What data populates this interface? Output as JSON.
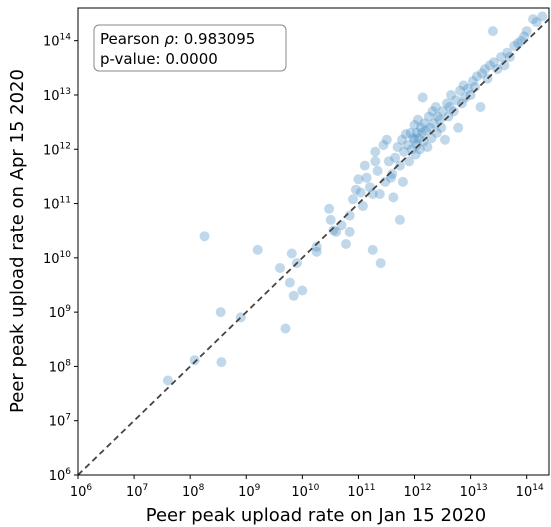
{
  "chart_data": {
    "type": "scatter",
    "title": "",
    "xlabel": "Peer peak upload rate on Jan 15 2020",
    "ylabel": "Peer peak upload rate on Apr 15 2020",
    "xscale": "log",
    "yscale": "log",
    "xlim": [
      1000000,
      250000000000000
    ],
    "ylim": [
      1000000,
      400000000000000
    ],
    "xticks": [
      {
        "value": 1000000.0,
        "base": "10",
        "exp": "6"
      },
      {
        "value": 10000000.0,
        "base": "10",
        "exp": "7"
      },
      {
        "value": 100000000.0,
        "base": "10",
        "exp": "8"
      },
      {
        "value": 1000000000.0,
        "base": "10",
        "exp": "9"
      },
      {
        "value": 10000000000.0,
        "base": "10",
        "exp": "10"
      },
      {
        "value": 100000000000.0,
        "base": "10",
        "exp": "11"
      },
      {
        "value": 1000000000000.0,
        "base": "10",
        "exp": "12"
      },
      {
        "value": 10000000000000.0,
        "base": "10",
        "exp": "13"
      },
      {
        "value": 100000000000000.0,
        "base": "10",
        "exp": "14"
      }
    ],
    "yticks": [
      {
        "value": 1000000.0,
        "base": "10",
        "exp": "6"
      },
      {
        "value": 10000000.0,
        "base": "10",
        "exp": "7"
      },
      {
        "value": 100000000.0,
        "base": "10",
        "exp": "8"
      },
      {
        "value": 1000000000.0,
        "base": "10",
        "exp": "9"
      },
      {
        "value": 10000000000.0,
        "base": "10",
        "exp": "10"
      },
      {
        "value": 100000000000.0,
        "base": "10",
        "exp": "11"
      },
      {
        "value": 1000000000000.0,
        "base": "10",
        "exp": "12"
      },
      {
        "value": 10000000000000.0,
        "base": "10",
        "exp": "13"
      },
      {
        "value": 100000000000000.0,
        "base": "10",
        "exp": "14"
      }
    ],
    "grid": false,
    "reference_line": {
      "style": "dashed",
      "color": "#444444",
      "relation": "y = x"
    },
    "annotation": {
      "line1_prefix": "Pearson ",
      "line1_symbol": "ρ",
      "line1_suffix": ": 0.983095",
      "line2": "p-value: 0.0000",
      "placement": "top-left"
    },
    "point_color": "#4a90c2",
    "point_opacity": 0.35,
    "points": [
      [
        40000000.0,
        55000000.0
      ],
      [
        120000000.0,
        130000000.0
      ],
      [
        180000000.0,
        25000000000.0
      ],
      [
        350000000.0,
        1000000000.0
      ],
      [
        360000000.0,
        120000000.0
      ],
      [
        800000000.0,
        800000000.0
      ],
      [
        1600000000.0,
        14000000000.0
      ],
      [
        4000000000.0,
        6500000000.0
      ],
      [
        5000000000.0,
        500000000.0
      ],
      [
        6000000000.0,
        3500000000.0
      ],
      [
        6500000000.0,
        12000000000.0
      ],
      [
        7000000000.0,
        2000000000.0
      ],
      [
        8000000000.0,
        8000000000.0
      ],
      [
        10000000000.0,
        2500000000.0
      ],
      [
        18000000000.0,
        13000000000.0
      ],
      [
        18000000000.0,
        16000000000.0
      ],
      [
        30000000000.0,
        80000000000.0
      ],
      [
        32000000000.0,
        50000000000.0
      ],
      [
        36000000000.0,
        32000000000.0
      ],
      [
        40000000000.0,
        30000000000.0
      ],
      [
        50000000000.0,
        40000000000.0
      ],
      [
        60000000000.0,
        18000000000.0
      ],
      [
        70000000000.0,
        60000000000.0
      ],
      [
        70000000000.0,
        30000000000.0
      ],
      [
        80000000000.0,
        120000000000.0
      ],
      [
        90000000000.0,
        180000000000.0
      ],
      [
        100000000000.0,
        280000000000.0
      ],
      [
        110000000000.0,
        160000000000.0
      ],
      [
        120000000000.0,
        90000000000.0
      ],
      [
        130000000000.0,
        500000000000.0
      ],
      [
        140000000000.0,
        300000000000.0
      ],
      [
        160000000000.0,
        200000000000.0
      ],
      [
        180000000000.0,
        150000000000.0
      ],
      [
        180000000000.0,
        14000000000.0
      ],
      [
        200000000000.0,
        600000000000.0
      ],
      [
        200000000000.0,
        900000000000.0
      ],
      [
        220000000000.0,
        400000000000.0
      ],
      [
        240000000000.0,
        150000000000.0
      ],
      [
        250000000000.0,
        8000000000.0
      ],
      [
        280000000000.0,
        1200000000000.0
      ],
      [
        300000000000.0,
        250000000000.0
      ],
      [
        320000000000.0,
        1500000000000.0
      ],
      [
        350000000000.0,
        600000000000.0
      ],
      [
        380000000000.0,
        300000000000.0
      ],
      [
        400000000000.0,
        350000000000.0
      ],
      [
        420000000000.0,
        130000000000.0
      ],
      [
        450000000000.0,
        700000000000.0
      ],
      [
        500000000000.0,
        1100000000000.0
      ],
      [
        550000000000.0,
        50000000000.0
      ],
      [
        550000000000.0,
        500000000000.0
      ],
      [
        600000000000.0,
        1500000000000.0
      ],
      [
        620000000000.0,
        250000000000.0
      ],
      [
        650000000000.0,
        900000000000.0
      ],
      [
        700000000000.0,
        1900000000000.0
      ],
      [
        750000000000.0,
        1200000000000.0
      ],
      [
        800000000000.0,
        600000000000.0
      ],
      [
        850000000000.0,
        2000000000000.0
      ],
      [
        900000000000.0,
        1000000000000.0
      ],
      [
        950000000000.0,
        1600000000000.0
      ],
      [
        1000000000000.0,
        2800000000000.0
      ],
      [
        1000000000000.0,
        1500000000000.0
      ],
      [
        1050000000000.0,
        800000000000.0
      ],
      [
        1100000000000.0,
        2000000000000.0
      ],
      [
        1100000000000.0,
        1200000000000.0
      ],
      [
        1150000000000.0,
        3500000000000.0
      ],
      [
        1200000000000.0,
        1600000000000.0
      ],
      [
        1250000000000.0,
        1000000000000.0
      ],
      [
        1300000000000.0,
        2500000000000.0
      ],
      [
        1350000000000.0,
        2000000000000.0
      ],
      [
        1400000000000.0,
        9000000000000.0
      ],
      [
        1450000000000.0,
        1400000000000.0
      ],
      [
        1500000000000.0,
        3000000000000.0
      ],
      [
        1600000000000.0,
        2200000000000.0
      ],
      [
        1700000000000.0,
        1100000000000.0
      ],
      [
        1800000000000.0,
        4000000000000.0
      ],
      [
        1900000000000.0,
        2500000000000.0
      ],
      [
        2000000000000.0,
        1600000000000.0
      ],
      [
        2100000000000.0,
        5000000000000.0
      ],
      [
        2200000000000.0,
        3000000000000.0
      ],
      [
        2400000000000.0,
        6000000000000.0
      ],
      [
        2500000000000.0,
        2000000000000.0
      ],
      [
        2600000000000.0,
        4000000000000.0
      ],
      [
        2800000000000.0,
        3500000000000.0
      ],
      [
        3000000000000.0,
        2500000000000.0
      ],
      [
        3200000000000.0,
        5000000000000.0
      ],
      [
        3500000000000.0,
        1500000000000.0
      ],
      [
        3800000000000.0,
        7000000000000.0
      ],
      [
        4000000000000.0,
        4000000000000.0
      ],
      [
        4200000000000.0,
        6000000000000.0
      ],
      [
        4500000000000.0,
        10000000000000.0
      ],
      [
        5000000000000.0,
        5000000000000.0
      ],
      [
        5500000000000.0,
        8000000000000.0
      ],
      [
        6000000000000.0,
        2500000000000.0
      ],
      [
        6500000000000.0,
        12000000000000.0
      ],
      [
        7000000000000.0,
        7000000000000.0
      ],
      [
        7500000000000.0,
        15000000000000.0
      ],
      [
        8000000000000.0,
        9000000000000.0
      ],
      [
        9000000000000.0,
        13000000000000.0
      ],
      [
        10000000000000.0,
        10000000000000.0
      ],
      [
        11000000000000.0,
        18000000000000.0
      ],
      [
        12000000000000.0,
        14000000000000.0
      ],
      [
        13000000000000.0,
        22000000000000.0
      ],
      [
        15000000000000.0,
        6000000000000.0
      ],
      [
        16000000000000.0,
        25000000000000.0
      ],
      [
        18000000000000.0,
        30000000000000.0
      ],
      [
        20000000000000.0,
        20000000000000.0
      ],
      [
        22000000000000.0,
        35000000000000.0
      ],
      [
        25000000000000.0,
        150000000000000.0
      ],
      [
        26000000000000.0,
        40000000000000.0
      ],
      [
        30000000000000.0,
        30000000000000.0
      ],
      [
        35000000000000.0,
        50000000000000.0
      ],
      [
        40000000000000.0,
        35000000000000.0
      ],
      [
        45000000000000.0,
        60000000000000.0
      ],
      [
        50000000000000.0,
        50000000000000.0
      ],
      [
        60000000000000.0,
        80000000000000.0
      ],
      [
        70000000000000.0,
        90000000000000.0
      ],
      [
        80000000000000.0,
        100000000000000.0
      ],
      [
        90000000000000.0,
        120000000000000.0
      ],
      [
        100000000000000.0,
        150000000000000.0
      ],
      [
        130000000000000.0,
        250000000000000.0
      ],
      [
        150000000000000.0,
        220000000000000.0
      ],
      [
        190000000000000.0,
        280000000000000.0
      ]
    ]
  }
}
